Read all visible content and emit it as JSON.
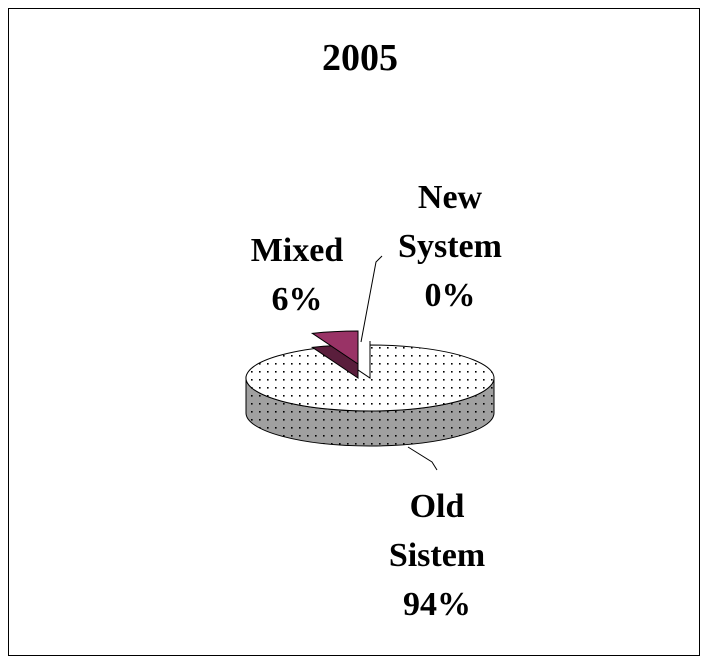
{
  "chart_data": {
    "type": "pie",
    "title": "2005",
    "categories": [
      "Old Sistem",
      "Mixed",
      "New System"
    ],
    "values": [
      94,
      6,
      0
    ],
    "value_labels": [
      "94%",
      "6%",
      "0%"
    ],
    "colors": [
      "#ffffff",
      "#993366",
      "#ffffff"
    ]
  }
}
